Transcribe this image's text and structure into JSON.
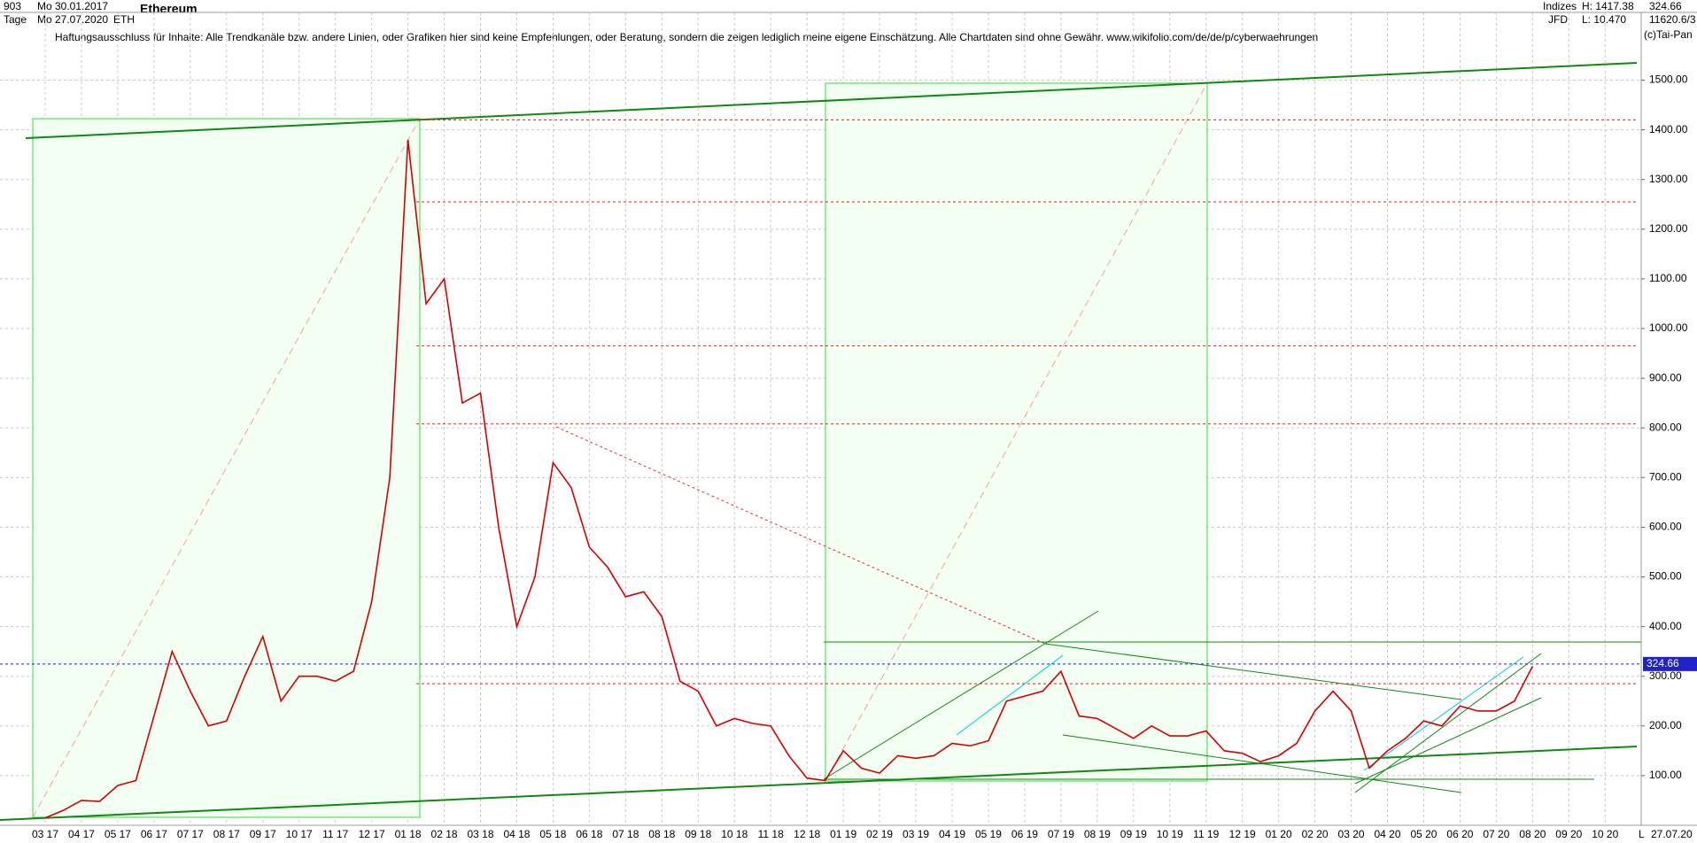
{
  "header": {
    "count": "903",
    "start": "Mo 30.01.2017",
    "period": "Tage",
    "end": "Mo 27.07.2020",
    "symbol": "ETH",
    "name": "Ethereum",
    "disclaimer": "Haftungsausschluss für Inhalte: Alle Trendkanäle bzw. andere Linien, oder Grafiken hier sind keine Empfehlungen, oder Beratung, sondern die zeigen lediglich meine eigene Einschätzung. Alle Chartdaten sind ohne Gewähr.  www.wikifolio.com/de/de/p/cyberwaehrungen",
    "group": "Indizes",
    "broker": "JFD",
    "high": "H: 1417.38",
    "low": "L: 10.470",
    "last": "324.66",
    "extra": "11620.6/3",
    "copyright": "(c)Tai-Pan",
    "scale_mode": "L",
    "date": "27.07.20"
  },
  "chart_data": {
    "type": "line",
    "categories": [
      "03 17",
      null,
      "04 17",
      null,
      "05 17",
      null,
      "06 17",
      null,
      "07 17",
      null,
      "08 17",
      null,
      "09 17",
      null,
      "10 17",
      null,
      "11 17",
      null,
      "12 17",
      null,
      "01 18",
      null,
      "02 18",
      null,
      "03 18",
      null,
      "04 18",
      null,
      "05 18",
      null,
      "06 18",
      null,
      "07 18",
      null,
      "08 18",
      null,
      "09 18",
      null,
      "10 18",
      null,
      "11 18",
      null,
      "12 18",
      null,
      "01 19",
      null,
      "02 19",
      null,
      "03 19",
      null,
      "04 19",
      null,
      "05 19",
      null,
      "06 19",
      null,
      "07 19",
      null,
      "08 19",
      null,
      "09 19",
      null,
      "10 19",
      null,
      "11 19",
      null,
      "12 19",
      null,
      "01 20",
      null,
      "02 20",
      null,
      "03 20",
      null,
      "04 20",
      null,
      "05 20",
      null,
      "06 20",
      null,
      "07 20",
      null,
      "08 20",
      null,
      "09 20",
      null,
      "10 20"
    ],
    "series": [
      {
        "name": "Ethereum",
        "color": "#d40000",
        "values": [
          15,
          30,
          50,
          48,
          80,
          90,
          220,
          350,
          270,
          200,
          210,
          300,
          380,
          250,
          300,
          300,
          290,
          310,
          450,
          700,
          1380,
          1050,
          1100,
          850,
          870,
          600,
          400,
          500,
          730,
          680,
          560,
          520,
          460,
          470,
          420,
          290,
          270,
          200,
          215,
          205,
          200,
          140,
          95,
          90,
          150,
          115,
          105,
          140,
          135,
          140,
          165,
          160,
          170,
          250,
          260,
          270,
          310,
          220,
          215,
          195,
          175,
          200,
          180,
          180,
          190,
          150,
          145,
          128,
          140,
          165,
          230,
          270,
          230,
          115,
          150,
          175,
          210,
          200,
          240,
          230,
          230,
          250,
          320,
          null,
          null,
          null,
          null
        ]
      }
    ],
    "ylim": [
      0,
      1640
    ],
    "yticks": [
      {
        "value": 100,
        "label": "100.00"
      },
      {
        "value": 200,
        "label": "200.00"
      },
      {
        "value": 300,
        "label": "300.00"
      },
      {
        "value": 400,
        "label": "400.00"
      },
      {
        "value": 500,
        "label": "500.00"
      },
      {
        "value": 600,
        "label": "600.00"
      },
      {
        "value": 700,
        "label": "700.00"
      },
      {
        "value": 800,
        "label": "800.00"
      },
      {
        "value": 900,
        "label": "900.00"
      },
      {
        "value": 1000,
        "label": "1000.00"
      },
      {
        "value": 1100,
        "label": "1100.00"
      },
      {
        "value": 1200,
        "label": "1200.00"
      },
      {
        "value": 1300,
        "label": "1300.00"
      },
      {
        "value": 1400,
        "label": "1400.00"
      },
      {
        "value": 1500,
        "label": "1500.00"
      }
    ],
    "grid": true,
    "current": 324.66,
    "resistance_lines": [
      1420,
      1255,
      965,
      808,
      285
    ]
  }
}
